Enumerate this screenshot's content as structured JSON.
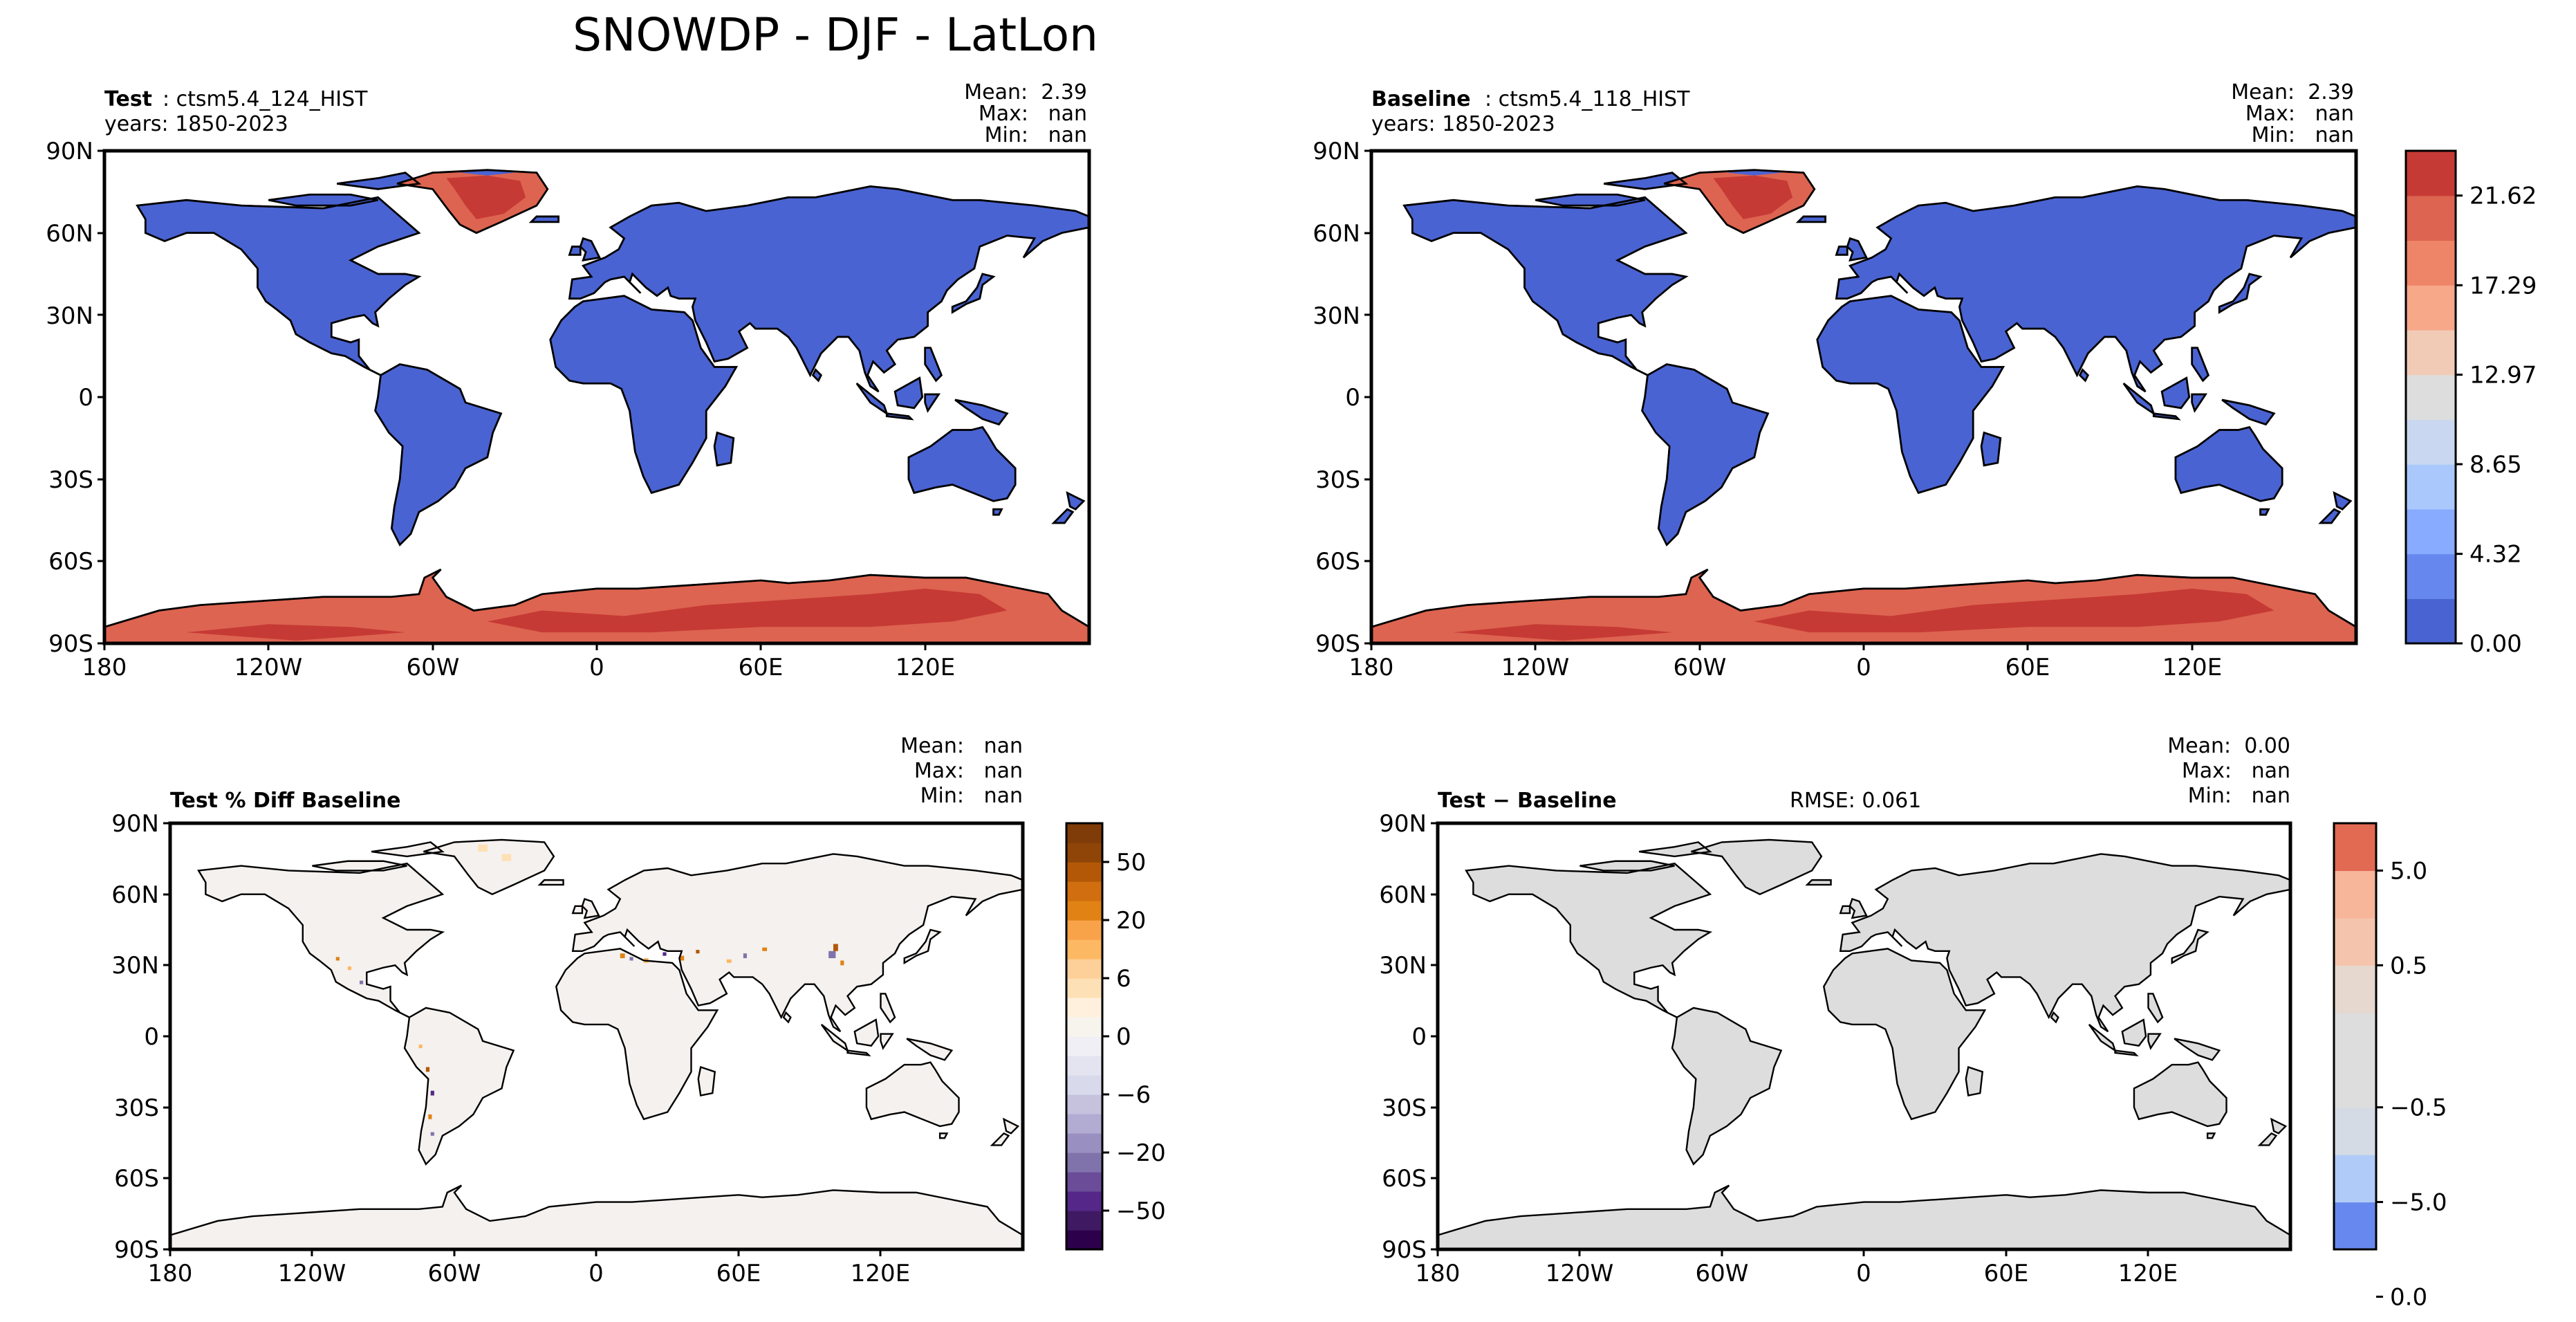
{
  "figure": {
    "title": "SNOWDP - DJF - LatLon"
  },
  "colors": {
    "land": "#4a63d2",
    "land_zero_diff": "#dcdcdc",
    "pct_land": "#f4f1ee",
    "coast": "#000000",
    "ocean": "#ffffff"
  },
  "panels": [
    {
      "id": "test",
      "label_bold": "Test",
      "label_text": ": ctsm5.4_124_HIST",
      "years": "years: 1850-2023",
      "stats": {
        "mean": "Mean:  2.39",
        "max": "Max:   nan",
        "min": "Min:   nan"
      }
    },
    {
      "id": "baseline",
      "label_bold": "Baseline",
      "label_text": ": ctsm5.4_118_HIST",
      "years": "years: 1850-2023",
      "stats": {
        "mean": "Mean:  2.39",
        "max": "Max:   nan",
        "min": "Min:   nan"
      }
    },
    {
      "id": "pctdiff",
      "label_bold": "Test % Diff Baseline",
      "stats": {
        "mean": "Mean:   nan",
        "max": "Max:   nan",
        "min": "Min:   nan"
      }
    },
    {
      "id": "diff",
      "label_bold": "Test − Baseline",
      "rmse": "RMSE: 0.061",
      "stats": {
        "mean": "Mean:  0.00",
        "max": "Max:   nan",
        "min": "Min:   nan"
      }
    }
  ],
  "axes": {
    "lon_ticks": [
      "180",
      "120W",
      "60W",
      "0",
      "60E",
      "120E"
    ],
    "lat_ticks": [
      "90N",
      "60N",
      "30N",
      "0",
      "30S",
      "60S",
      "90S"
    ]
  },
  "chart_data": [
    {
      "type": "heatmap",
      "panel": "test",
      "map": "global latlon",
      "xlim": [
        -180,
        180
      ],
      "ylim": [
        -90,
        90
      ],
      "summary": {
        "mean": 2.39,
        "max": "nan",
        "min": "nan"
      }
    },
    {
      "type": "heatmap",
      "panel": "baseline",
      "map": "global latlon",
      "xlim": [
        -180,
        180
      ],
      "ylim": [
        -90,
        90
      ],
      "summary": {
        "mean": 2.39,
        "max": "nan",
        "min": "nan"
      }
    },
    {
      "type": "heatmap",
      "panel": "pctdiff",
      "map": "global latlon",
      "xlim": [
        -180,
        180
      ],
      "ylim": [
        -90,
        90
      ],
      "summary": {
        "mean": "nan",
        "max": "nan",
        "min": "nan"
      }
    },
    {
      "type": "heatmap",
      "panel": "diff",
      "map": "global latlon",
      "xlim": [
        -180,
        180
      ],
      "ylim": [
        -90,
        90
      ],
      "rmse": 0.061,
      "summary": {
        "mean": 0.0,
        "max": "nan",
        "min": "nan"
      }
    }
  ],
  "colorbars": [
    {
      "id": "cbar-main",
      "ticks": [
        "0.00",
        "4.32",
        "8.65",
        "12.97",
        "17.29",
        "21.62"
      ],
      "tick_values": [
        0.0,
        4.32,
        8.65,
        12.97,
        17.29,
        21.62
      ],
      "range": [
        0,
        23.78
      ],
      "colors": [
        "#4a63d2",
        "#6688ee",
        "#88aaff",
        "#aac8fc",
        "#c9d8f0",
        "#dddddd",
        "#f2cbb7",
        "#f6a889",
        "#ef8568",
        "#dd6450",
        "#c63a35"
      ]
    },
    {
      "id": "cbar-pct",
      "ticks": [
        "50",
        "20",
        "6",
        "0",
        "−6",
        "−20",
        "−50"
      ],
      "tick_values": [
        50,
        20,
        6,
        0,
        -6,
        -20,
        -50
      ],
      "levels": [
        -80,
        -60,
        -50,
        -40,
        -30,
        -20,
        -15,
        -10,
        -6,
        -3,
        -1,
        0,
        1,
        3,
        6,
        10,
        15,
        20,
        30,
        40,
        50,
        60,
        80
      ],
      "colors": [
        "#2d004b",
        "#3f1a63",
        "#542788",
        "#6a4c98",
        "#8073ac",
        "#998fc0",
        "#b2abd2",
        "#c6c2de",
        "#d8daeb",
        "#e4e4f1",
        "#f0eff5",
        "#f7f4ee",
        "#fff0dd",
        "#fee0b6",
        "#fdd09a",
        "#fdb863",
        "#f8a24a",
        "#e08214",
        "#d06e10",
        "#b35806",
        "#8e4507",
        "#7f3b08"
      ]
    },
    {
      "id": "cbar-diff",
      "ticks": [
        "5.0",
        "0.5",
        "0.0",
        "−0.5",
        "−5.0"
      ],
      "tick_values": [
        5.0,
        0.5,
        0.0,
        -0.5,
        -5.0
      ],
      "levels": [
        -10,
        -5,
        -1,
        -0.5,
        -0.1,
        0.1,
        0.5,
        1,
        5,
        10
      ],
      "colors": [
        "#6788ee",
        "#b0cbf8",
        "#d5dbe5",
        "#dddddd",
        "#dddddd",
        "#e6d7cf",
        "#f4c4ac",
        "#f7b59a",
        "#e26952"
      ]
    }
  ]
}
